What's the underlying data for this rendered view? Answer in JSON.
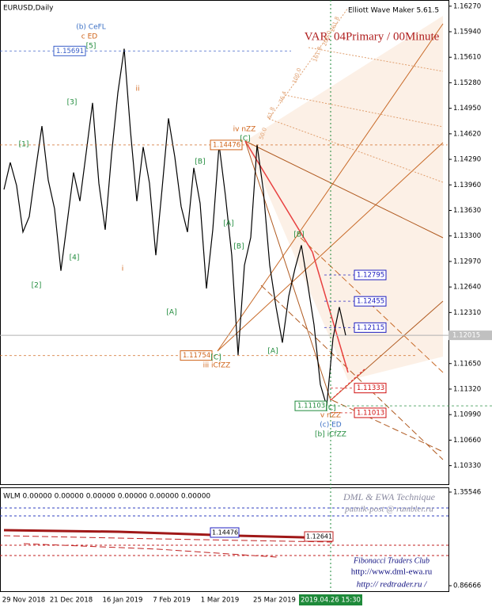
{
  "chart_data": {
    "type": "line",
    "title": "EURUSD,Daily",
    "subtitle": "Elliott Wave Maker 5.61.5",
    "variant": "VAR. 04Primary / 00Minute",
    "series": [
      {
        "name": "EURUSD",
        "color": "#000000",
        "values": [
          1.139,
          1.1425,
          1.1395,
          1.1335,
          1.1355,
          1.1415,
          1.1472,
          1.1402,
          1.1365,
          1.1285,
          1.1348,
          1.1412,
          1.1375,
          1.1438,
          1.1502,
          1.1398,
          1.1338,
          1.1435,
          1.1515,
          1.1572,
          1.1465,
          1.1375,
          1.1445,
          1.1398,
          1.1305,
          1.1392,
          1.1482,
          1.1432,
          1.1368,
          1.1335,
          1.1418,
          1.1372,
          1.1262,
          1.1338,
          1.1448,
          1.1382,
          1.1305,
          1.1176,
          1.1292,
          1.1328,
          1.1448,
          1.1388,
          1.1292,
          1.1238,
          1.1192,
          1.1252,
          1.1288,
          1.1318,
          1.1268,
          1.1215,
          1.1138,
          1.111,
          1.1198,
          1.1238,
          1.12015
        ]
      }
    ],
    "ylim": [
      1.1008,
      1.1635
    ],
    "yticks": [
      {
        "value": 1.1627,
        "label": "1.16270"
      },
      {
        "value": 1.1594,
        "label": "1.15940"
      },
      {
        "value": 1.1561,
        "label": "1.15610"
      },
      {
        "value": 1.1528,
        "label": "1.15280"
      },
      {
        "value": 1.1495,
        "label": "1.14950"
      },
      {
        "value": 1.1462,
        "label": "1.14620"
      },
      {
        "value": 1.1429,
        "label": "1.14290"
      },
      {
        "value": 1.1396,
        "label": "1.13960"
      },
      {
        "value": 1.1363,
        "label": "1.13630"
      },
      {
        "value": 1.133,
        "label": "1.13300"
      },
      {
        "value": 1.1297,
        "label": "1.12970"
      },
      {
        "value": 1.1264,
        "label": "1.12640"
      },
      {
        "value": 1.1231,
        "label": "1.12310"
      },
      {
        "value": 1.1198,
        "label": "1.11980"
      },
      {
        "value": 1.1165,
        "label": "1.11650"
      },
      {
        "value": 1.1132,
        "label": "1.11320"
      },
      {
        "value": 1.1099,
        "label": "1.10990"
      },
      {
        "value": 1.1066,
        "label": "1.10660"
      },
      {
        "value": 1.1033,
        "label": "1.10330"
      }
    ],
    "current_price": 1.12015,
    "price_boxes": [
      {
        "value": 1.15691,
        "color": "#3a5fc8"
      },
      {
        "value": 1.14476,
        "color": "#d0641a"
      },
      {
        "value": 1.11754,
        "color": "#d0641a"
      },
      {
        "value": 1.11103,
        "color": "#1e8a3a"
      },
      {
        "value": 1.12795,
        "color": "#2020c0"
      },
      {
        "value": 1.12455,
        "color": "#2020c0"
      },
      {
        "value": 1.12115,
        "color": "#2020c0"
      },
      {
        "value": 1.11333,
        "color": "#d01010"
      },
      {
        "value": 1.11013,
        "color": "#d01010"
      }
    ],
    "annotations": [
      {
        "text": "(b) CeFL",
        "color": "#3a6fc4"
      },
      {
        "text": "c ED",
        "color": "#d0641a"
      },
      {
        "text": "[5]",
        "color": "#1e8a3a"
      },
      {
        "text": "ii",
        "color": "#d0641a"
      },
      {
        "text": "[3]",
        "color": "#1e8a3a"
      },
      {
        "text": "[1]",
        "color": "#1e8a3a"
      },
      {
        "text": "[4]",
        "color": "#1e8a3a"
      },
      {
        "text": "[2]",
        "color": "#1e8a3a"
      },
      {
        "text": "i",
        "color": "#d0641a"
      },
      {
        "text": "[B]",
        "color": "#1e8a3a"
      },
      {
        "text": "[A]",
        "color": "#1e8a3a"
      },
      {
        "text": "iv nZZ",
        "color": "#d0641a"
      },
      {
        "text": "[C]",
        "color": "#1e8a3a"
      },
      {
        "text": "[A]",
        "color": "#1e8a3a"
      },
      {
        "text": "[B]",
        "color": "#1e8a3a"
      },
      {
        "text": "[C]",
        "color": "#1e8a3a"
      },
      {
        "text": "iii iCfZZ",
        "color": "#d0641a"
      },
      {
        "text": "[A]",
        "color": "#1e8a3a"
      },
      {
        "text": "[B]",
        "color": "#1e8a3a"
      },
      {
        "text": "[C]",
        "color": "#1e8a3a"
      },
      {
        "text": "v nZZ",
        "color": "#d0641a"
      },
      {
        "text": "(c) ED",
        "color": "#3a6fc4"
      },
      {
        "text": "[b] iCfZZ",
        "color": "#1e8a3a"
      }
    ],
    "fib_labels": [
      "50.0",
      "61.8",
      "76.4",
      "100.0",
      "161.8",
      "200.0",
      "261.8"
    ],
    "x_labels": [
      "29 Nov 2018",
      "21 Dec 2018",
      "16 Jan 2019",
      "7 Feb 2019",
      "1 Mar 2019",
      "25 Mar 2019",
      "2019.04.26 15:30"
    ],
    "indicator": {
      "title": "WLM 0.00000 0.00000 0.00000 0.00000 0.00000 0.00000",
      "ylim": [
        0.8338,
        1.3801
      ],
      "yticks": [
        1.35546,
        0.86666
      ],
      "labels": [
        "1.14476",
        "1.12641"
      ]
    },
    "credits": [
      "DML & EWA Technique",
      "putnik-post @ rambler.ru",
      "Fibonacci Traders Club",
      "http://www.dml-ewa.ru",
      "http:// redtrader.ru /"
    ]
  }
}
